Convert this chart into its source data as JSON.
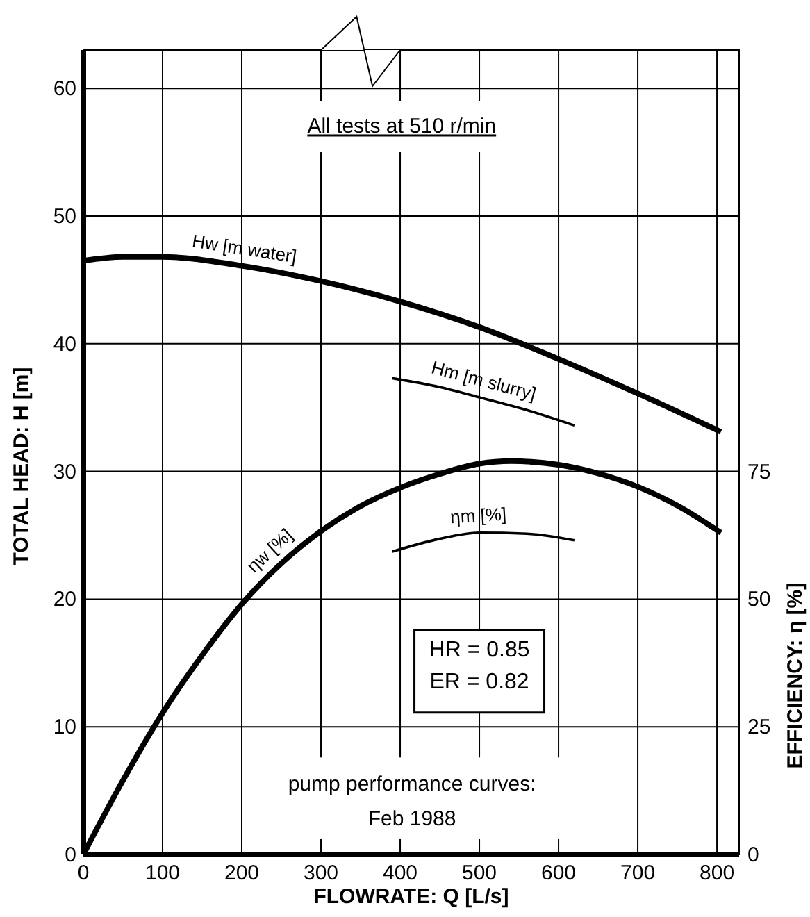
{
  "chart_data": {
    "type": "line",
    "xlabel": "FLOWRATE: Q [L/s]",
    "ylabel": "TOTAL HEAD: H [m]",
    "y2label": "EFFICIENCY: η [%]",
    "xlim": [
      0,
      828
    ],
    "xticks": [
      0,
      100,
      200,
      300,
      400,
      500,
      600,
      700,
      800
    ],
    "ylim": [
      0,
      63
    ],
    "yticks": [
      0,
      10,
      20,
      30,
      40,
      50,
      60
    ],
    "y2lim": [
      0,
      157.5
    ],
    "y2ticks": [
      0,
      25,
      50,
      75
    ],
    "grid": true,
    "marker": "none",
    "line_style": "solid",
    "series": [
      {
        "name": "Hw [m water]",
        "color": "#000000",
        "x": [
          0,
          50,
          100,
          200,
          300,
          400,
          500,
          600,
          700,
          805
        ],
        "values": [
          46.5,
          46.8,
          46.8,
          46.1,
          44.9,
          43.3,
          41.3,
          38.8,
          36.1,
          33.1
        ]
      },
      {
        "name": "Hm [m slurry]",
        "color": "#000000",
        "x": [
          390,
          450,
          500,
          560,
          620
        ],
        "values": [
          37.3,
          36.6,
          35.8,
          34.8,
          33.6
        ]
      },
      {
        "name": "ηw [%]",
        "color": "#000000",
        "axis": "y2",
        "x": [
          0,
          50,
          100,
          150,
          200,
          250,
          300,
          350,
          400,
          450,
          500,
          540,
          600,
          650,
          700,
          750,
          805
        ],
        "values": [
          0,
          14.5,
          27.7,
          39,
          49,
          57,
          63.3,
          68.2,
          71.8,
          74.5,
          76.5,
          77,
          76.3,
          74.6,
          72,
          68.3,
          63
        ]
      },
      {
        "name": "ηm [%]",
        "color": "#000000",
        "axis": "y2",
        "x": [
          390,
          450,
          500,
          560,
          620
        ],
        "values": [
          59.3,
          61.8,
          63,
          62.8,
          61.5
        ]
      }
    ],
    "annotations": [
      "All tests at 510 r/min",
      "HR = 0.85",
      "ER = 0.82",
      "pump performance curves:",
      "Feb 1988"
    ]
  }
}
